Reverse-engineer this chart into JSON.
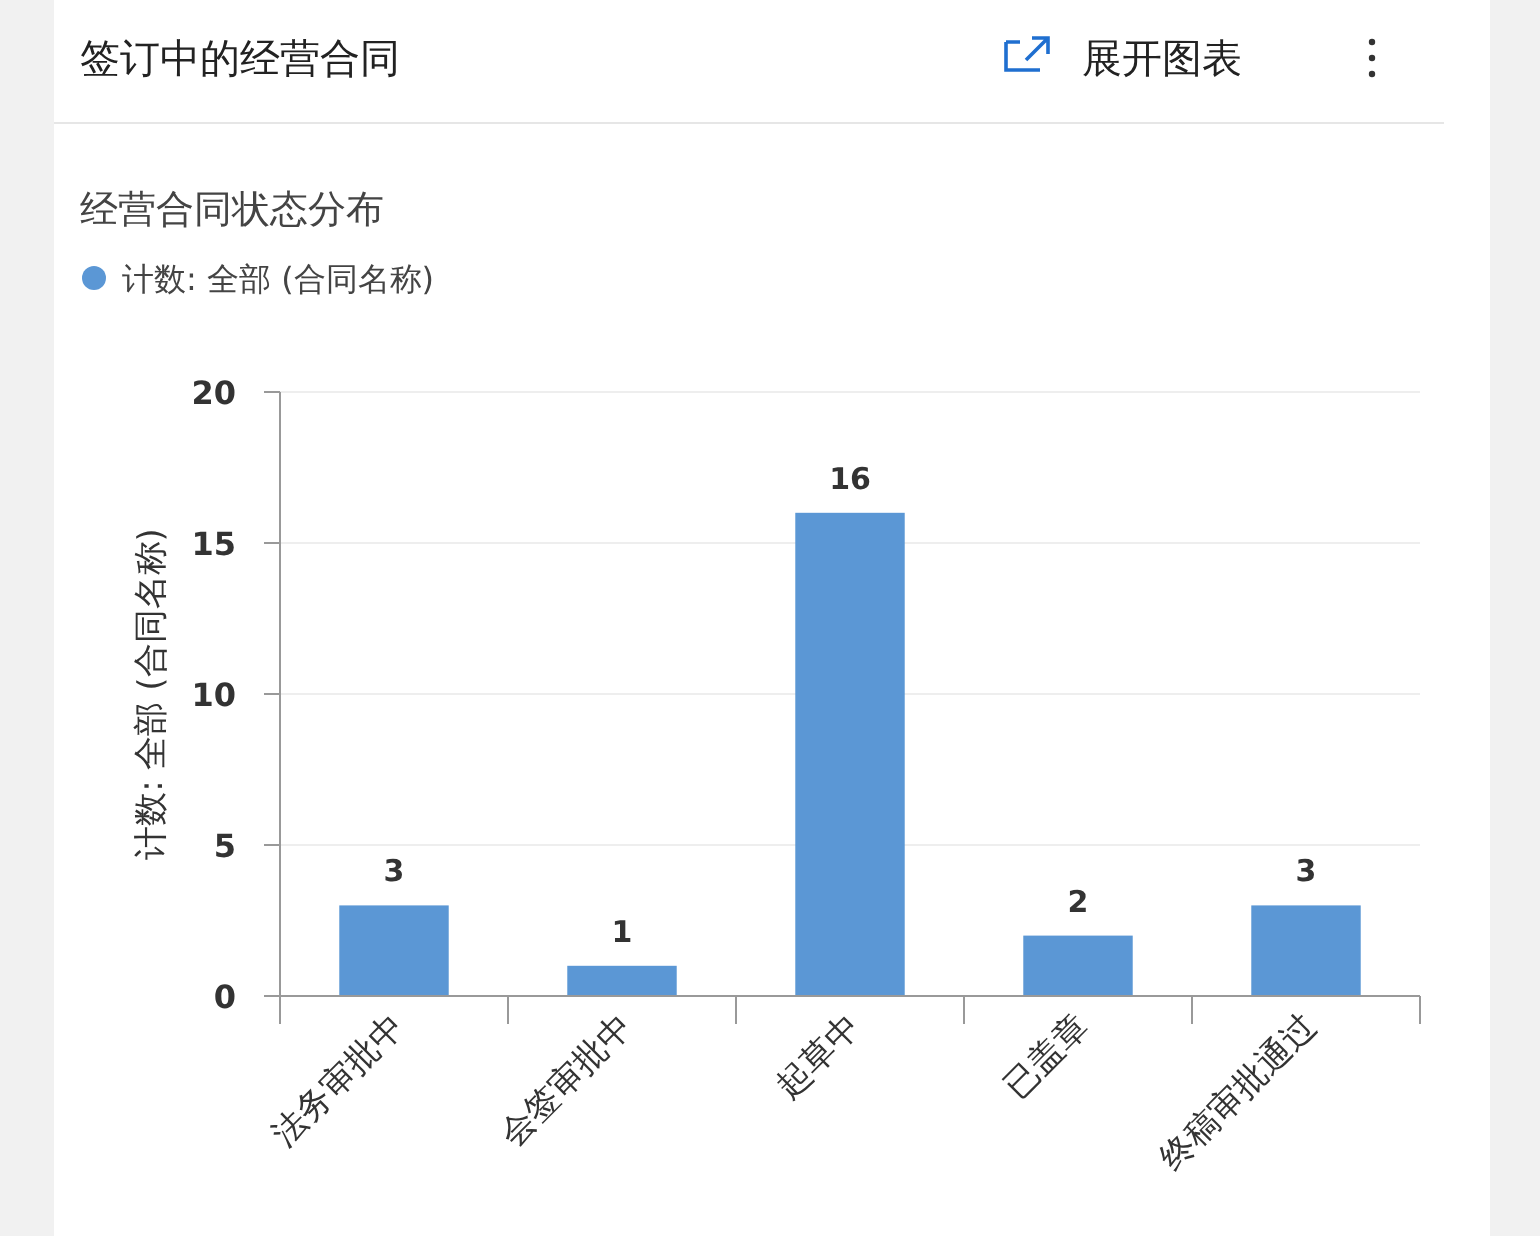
{
  "chart_data": {
    "type": "bar",
    "title": "签订中的经营合同",
    "subtitle": "经营合同状态分布",
    "ylabel": "计数: 全部 (合同名称)",
    "categories": [
      "法务审批中",
      "会签审批中",
      "起草中",
      "已盖章",
      "终稿审批通过"
    ],
    "series": [
      {
        "name": "计数: 全部 (合同名称)",
        "color": "#5b97d5",
        "values": [
          3,
          1,
          16,
          2,
          3
        ]
      }
    ],
    "ylim": [
      0,
      20
    ],
    "yticks": [
      0,
      5,
      10,
      15,
      20
    ],
    "grid": "y",
    "legend": "top left",
    "data_labels": true,
    "annotations": [
      "展开图表"
    ]
  }
}
